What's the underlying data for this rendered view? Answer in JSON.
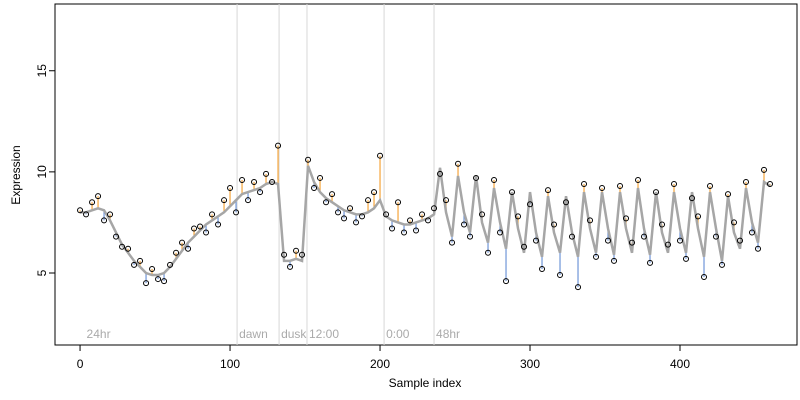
{
  "chart_data": {
    "type": "scatter",
    "x_label": "Sample index",
    "y_label": "Expression",
    "xlim": [
      -16.7,
      478
    ],
    "ylim": [
      1.44,
      18.3
    ],
    "xticks": [
      0,
      100,
      200,
      300,
      400
    ],
    "yticks": [
      5,
      10,
      15
    ],
    "annotations": [
      {
        "x": 3,
        "label": "24hr",
        "line": false
      },
      {
        "x": 104.7,
        "label": "dawn",
        "line": true
      },
      {
        "x": 132.7,
        "label": "dusk",
        "line": true
      },
      {
        "x": 151.3,
        "label": "12:00",
        "line": true
      },
      {
        "x": 202.7,
        "label": "0:00",
        "line": true
      },
      {
        "x": 236,
        "label": "48hr",
        "line": true
      }
    ],
    "residual_colors": [
      "#f5a43a",
      "#6f95d8"
    ],
    "x": [
      0,
      4,
      8,
      12,
      16,
      20,
      24,
      28,
      32,
      36,
      40,
      44,
      48,
      52,
      56,
      60,
      64,
      68,
      72,
      76,
      80,
      84,
      88,
      92,
      96,
      100,
      104,
      108,
      112,
      116,
      120,
      124,
      128,
      132,
      136,
      140,
      144,
      148,
      152,
      156,
      160,
      164,
      168,
      172,
      176,
      180,
      184,
      188,
      192,
      196,
      200,
      204,
      208,
      212,
      216,
      220,
      224,
      228,
      232,
      236,
      240,
      244,
      248,
      252,
      256,
      260,
      264,
      268,
      272,
      276,
      280,
      284,
      288,
      292,
      296,
      300,
      304,
      308,
      312,
      316,
      320,
      324,
      328,
      332,
      336,
      340,
      344,
      348,
      352,
      356,
      360,
      364,
      368,
      372,
      376,
      380,
      384,
      388,
      392,
      396,
      400,
      404,
      408,
      412,
      416,
      420,
      424,
      428,
      432,
      436,
      440,
      444,
      448,
      452,
      456,
      460
    ],
    "series": [
      {
        "color": "#000000",
        "values": [
          8.1,
          7.9,
          8.5,
          8.8,
          7.6,
          7.9,
          6.8,
          6.3,
          6.2,
          5.4,
          5.6,
          4.5,
          5.2,
          4.7,
          4.6,
          5.4,
          6.0,
          6.5,
          6.2,
          7.2,
          7.3,
          7.0,
          7.9,
          7.4,
          8.6,
          9.2,
          8.0,
          9.6,
          8.6,
          9.5,
          9.0,
          9.9,
          9.5,
          11.3,
          5.9,
          5.3,
          6.1,
          5.9,
          10.6,
          9.2,
          9.7,
          8.5,
          8.9,
          8.0,
          7.7,
          8.2,
          7.5,
          7.8,
          8.6,
          9.0,
          10.8,
          7.9,
          7.2,
          8.5,
          7.0,
          7.6,
          7.1,
          7.9,
          7.6,
          8.2,
          9.9,
          8.6,
          6.5,
          10.4,
          7.4,
          6.8,
          9.7,
          7.9,
          6.0,
          9.6,
          7.0,
          4.6,
          9.0,
          7.8,
          6.3,
          8.4,
          6.6,
          5.2,
          9.1,
          7.4,
          4.9,
          8.5,
          6.8,
          4.3,
          9.4,
          7.6,
          5.8,
          9.2,
          6.6,
          5.6,
          9.3,
          7.7,
          6.5,
          9.6,
          6.8,
          5.5,
          9.0,
          7.4,
          6.4,
          9.4,
          6.6,
          5.7,
          8.7,
          7.8,
          4.8,
          9.3,
          6.8,
          5.4,
          8.9,
          7.5,
          6.6,
          9.5,
          7.0,
          6.2,
          10.1,
          9.4
        ]
      },
      {
        "color": "#a6a6a6",
        "values": [
          8.0,
          8.0,
          8.1,
          8.2,
          8.1,
          7.6,
          7.0,
          6.4,
          6.0,
          5.6,
          5.3,
          5.0,
          4.9,
          4.9,
          5.0,
          5.3,
          5.7,
          6.1,
          6.5,
          6.8,
          7.1,
          7.4,
          7.6,
          7.8,
          8.0,
          8.3,
          8.6,
          8.9,
          9.0,
          9.1,
          9.2,
          9.4,
          9.5,
          9.4,
          5.6,
          5.6,
          5.7,
          5.6,
          10.3,
          9.5,
          9.0,
          8.7,
          8.5,
          8.3,
          8.1,
          8.0,
          7.9,
          7.9,
          8.0,
          8.2,
          8.6,
          7.8,
          7.6,
          7.5,
          7.4,
          7.4,
          7.5,
          7.6,
          7.7,
          7.9,
          10.2,
          8.0,
          6.8,
          9.8,
          8.0,
          7.0,
          9.8,
          7.5,
          6.5,
          9.2,
          7.5,
          6.2,
          9.0,
          7.2,
          6.0,
          9.0,
          7.0,
          5.8,
          8.8,
          7.0,
          6.0,
          8.8,
          7.0,
          5.8,
          9.0,
          7.2,
          6.0,
          9.0,
          7.2,
          5.9,
          9.0,
          7.2,
          6.0,
          9.2,
          7.2,
          5.9,
          9.0,
          7.0,
          6.0,
          9.0,
          7.2,
          6.0,
          9.0,
          7.2,
          5.8,
          9.0,
          7.2,
          5.6,
          8.8,
          7.0,
          6.2,
          9.2,
          7.5,
          6.5,
          9.5,
          9.3
        ]
      }
    ]
  }
}
